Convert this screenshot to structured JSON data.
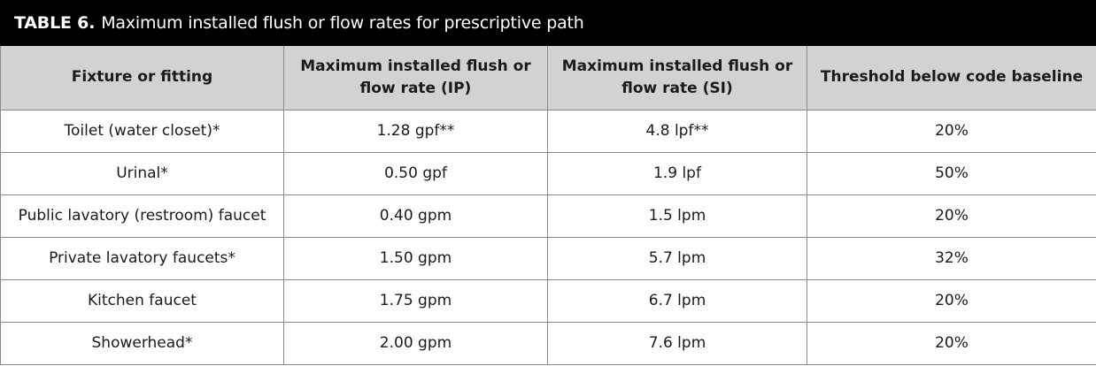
{
  "table": {
    "label": "TABLE 6.",
    "caption": "Maximum installed flush or flow rates for prescriptive path",
    "columns": [
      "Fixture or fitting",
      "Maximum installed flush or flow rate (IP)",
      "Maximum installed flush or flow rate (SI)",
      "Threshold below code baseline"
    ],
    "rows": [
      [
        "Toilet (water closet)*",
        "1.28 gpf**",
        "4.8 lpf**",
        "20%"
      ],
      [
        "Urinal*",
        "0.50 gpf",
        "1.9 lpf",
        "50%"
      ],
      [
        "Public lavatory (restroom) faucet",
        "0.40 gpm",
        "1.5 lpm",
        "20%"
      ],
      [
        "Private lavatory faucets*",
        "1.50 gpm",
        "5.7 lpm",
        "32%"
      ],
      [
        "Kitchen faucet",
        "1.75 gpm",
        "6.7 lpm",
        "20%"
      ],
      [
        "Showerhead*",
        "2.00 gpm",
        "7.6 lpm",
        "20%"
      ]
    ]
  },
  "colors": {
    "title_bar": "#000000",
    "header_fill": "#d1d2d4",
    "grid_line": "#8a8a8a"
  }
}
